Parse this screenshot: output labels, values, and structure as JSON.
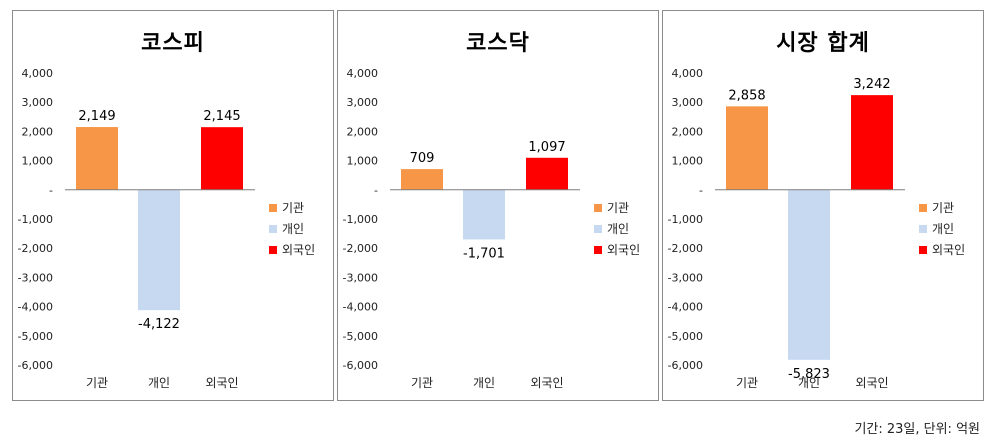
{
  "footer": "기간: 23일, 단위: 억원",
  "chart_data": [
    {
      "type": "bar",
      "title": "코스피",
      "categories": [
        "기관",
        "개인",
        "외국인"
      ],
      "values": [
        2149,
        -4122,
        2145
      ],
      "value_labels": [
        "2,149",
        "-4,122",
        "2,145"
      ],
      "colors": [
        "#f79646",
        "#c6d9f1",
        "#ff0000"
      ],
      "ylim": [
        -6000,
        4000
      ],
      "yticks": [
        {
          "v": 4000,
          "t": "4,000"
        },
        {
          "v": 3000,
          "t": "3,000"
        },
        {
          "v": 2000,
          "t": "2,000"
        },
        {
          "v": 1000,
          "t": "1,000"
        },
        {
          "v": 0,
          "t": "-"
        },
        {
          "v": -1000,
          "t": "-1,000"
        },
        {
          "v": -2000,
          "t": "-2,000"
        },
        {
          "v": -3000,
          "t": "-3,000"
        },
        {
          "v": -4000,
          "t": "-4,000"
        },
        {
          "v": -5000,
          "t": "-5,000"
        },
        {
          "v": -6000,
          "t": "-6,000"
        }
      ],
      "legend": [
        "기관",
        "개인",
        "외국인"
      ],
      "legend_position": "right",
      "grid": false
    },
    {
      "type": "bar",
      "title": "코스닥",
      "categories": [
        "기관",
        "개인",
        "외국인"
      ],
      "values": [
        709,
        -1701,
        1097
      ],
      "value_labels": [
        "709",
        "-1,701",
        "1,097"
      ],
      "colors": [
        "#f79646",
        "#c6d9f1",
        "#ff0000"
      ],
      "ylim": [
        -6000,
        4000
      ],
      "yticks": [
        {
          "v": 4000,
          "t": "4,000"
        },
        {
          "v": 3000,
          "t": "3,000"
        },
        {
          "v": 2000,
          "t": "2,000"
        },
        {
          "v": 1000,
          "t": "1,000"
        },
        {
          "v": 0,
          "t": "-"
        },
        {
          "v": -1000,
          "t": "-1,000"
        },
        {
          "v": -2000,
          "t": "-2,000"
        },
        {
          "v": -3000,
          "t": "-3,000"
        },
        {
          "v": -4000,
          "t": "-4,000"
        },
        {
          "v": -5000,
          "t": "-5,000"
        },
        {
          "v": -6000,
          "t": "-6,000"
        }
      ],
      "legend": [
        "기관",
        "개인",
        "외국인"
      ],
      "legend_position": "right",
      "grid": false
    },
    {
      "type": "bar",
      "title": "시장 합계",
      "categories": [
        "기관",
        "개인",
        "외국인"
      ],
      "values": [
        2858,
        -5823,
        3242
      ],
      "value_labels": [
        "2,858",
        "-5,823",
        "3,242"
      ],
      "colors": [
        "#f79646",
        "#c6d9f1",
        "#ff0000"
      ],
      "ylim": [
        -6000,
        4000
      ],
      "yticks": [
        {
          "v": 4000,
          "t": "4,000"
        },
        {
          "v": 3000,
          "t": "3,000"
        },
        {
          "v": 2000,
          "t": "2,000"
        },
        {
          "v": 1000,
          "t": "1,000"
        },
        {
          "v": 0,
          "t": "-"
        },
        {
          "v": -1000,
          "t": "-1,000"
        },
        {
          "v": -2000,
          "t": "-2,000"
        },
        {
          "v": -3000,
          "t": "-3,000"
        },
        {
          "v": -4000,
          "t": "-4,000"
        },
        {
          "v": -5000,
          "t": "-5,000"
        },
        {
          "v": -6000,
          "t": "-6,000"
        }
      ],
      "legend": [
        "기관",
        "개인",
        "외국인"
      ],
      "legend_position": "right",
      "grid": false
    }
  ]
}
